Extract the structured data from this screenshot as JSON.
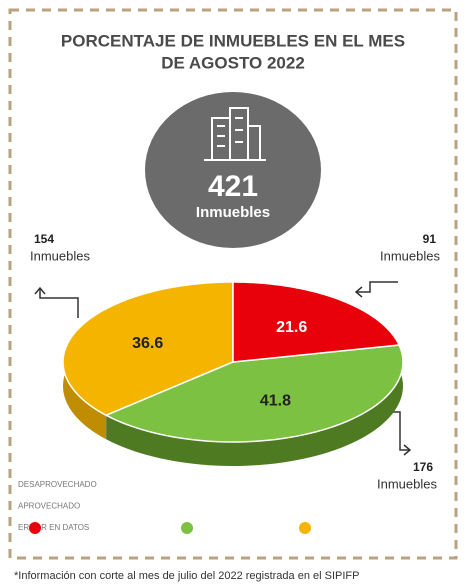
{
  "chart_data": {
    "type": "pie",
    "title_lines": [
      "PORCENTAJE DE INMUEBLES EN EL MES",
      "DE AGOSTO 2022"
    ],
    "total": 421,
    "total_label": "Inmuebles",
    "categories": [
      "DESAPROVECHADO",
      "APROVECHADO",
      "ERROR EN DATOS"
    ],
    "values": [
      36.6,
      41.8,
      21.6
    ],
    "colors": [
      "#f4b400",
      "#7dc142",
      "#e8000b"
    ],
    "side_colors": [
      "#c08c00",
      "#4e7a22",
      "#a80008"
    ],
    "counts": [
      154,
      176,
      91
    ],
    "count_label": "Inmuebles",
    "note": "*Información con corte al mes de julio del 2022 registrada en el SIPIFP"
  }
}
